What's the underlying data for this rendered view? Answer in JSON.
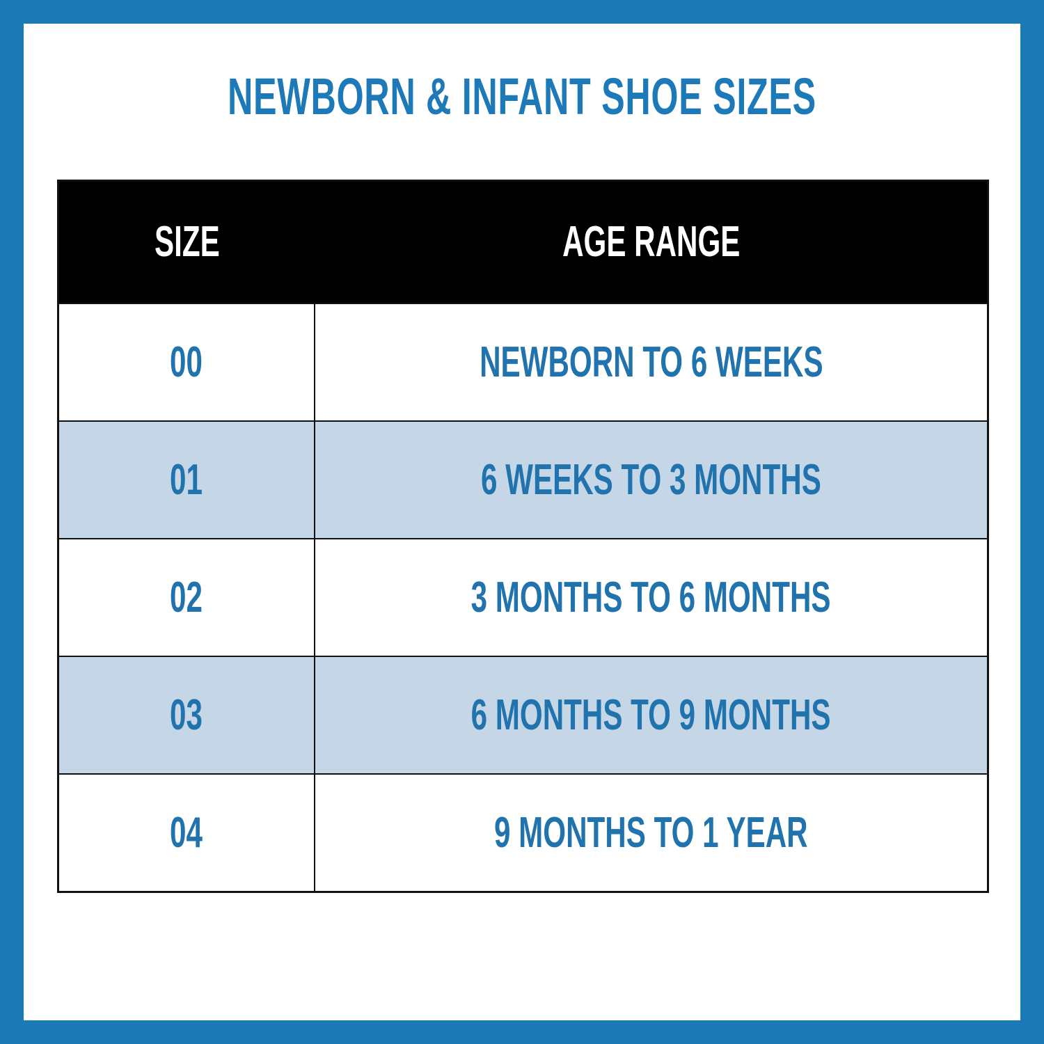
{
  "title": "NEWBORN & INFANT SHOE SIZES",
  "table": {
    "columns": [
      "SIZE",
      "AGE RANGE"
    ],
    "rows": [
      {
        "size": "00",
        "age": "NEWBORN TO 6 WEEKS"
      },
      {
        "size": "01",
        "age": "6 WEEKS TO 3 MONTHS"
      },
      {
        "size": "02",
        "age": "3 MONTHS TO 6 MONTHS"
      },
      {
        "size": "03",
        "age": "6 MONTHS TO 9 MONTHS"
      },
      {
        "size": "04",
        "age": "9 MONTHS TO 1 YEAR"
      }
    ]
  },
  "colors": {
    "frame_blue": "#1b79b4",
    "title_blue": "#1e79b8",
    "cell_text_blue": "#2173ae",
    "row_alt_blue": "#c5d7e7",
    "header_bg": "#000000",
    "header_text": "#ffffff",
    "table_border": "#111111",
    "panel_bg": "#ffffff"
  },
  "chart_data": {
    "type": "table",
    "title": "NEWBORN & INFANT SHOE SIZES",
    "columns": [
      "SIZE",
      "AGE RANGE"
    ],
    "rows": [
      [
        "00",
        "NEWBORN TO 6 WEEKS"
      ],
      [
        "01",
        "6 WEEKS TO 3 MONTHS"
      ],
      [
        "02",
        "3 MONTHS TO 6 MONTHS"
      ],
      [
        "03",
        "6 MONTHS TO 9 MONTHS"
      ],
      [
        "04",
        "9 MONTHS TO 1 YEAR"
      ]
    ],
    "layout": {
      "header_style": "black-bar-white-text",
      "row_striping": "white / light-blue alternating starting white",
      "grid": "thin black cell borders",
      "column_split_pct": [
        27.6,
        72.4
      ]
    }
  }
}
